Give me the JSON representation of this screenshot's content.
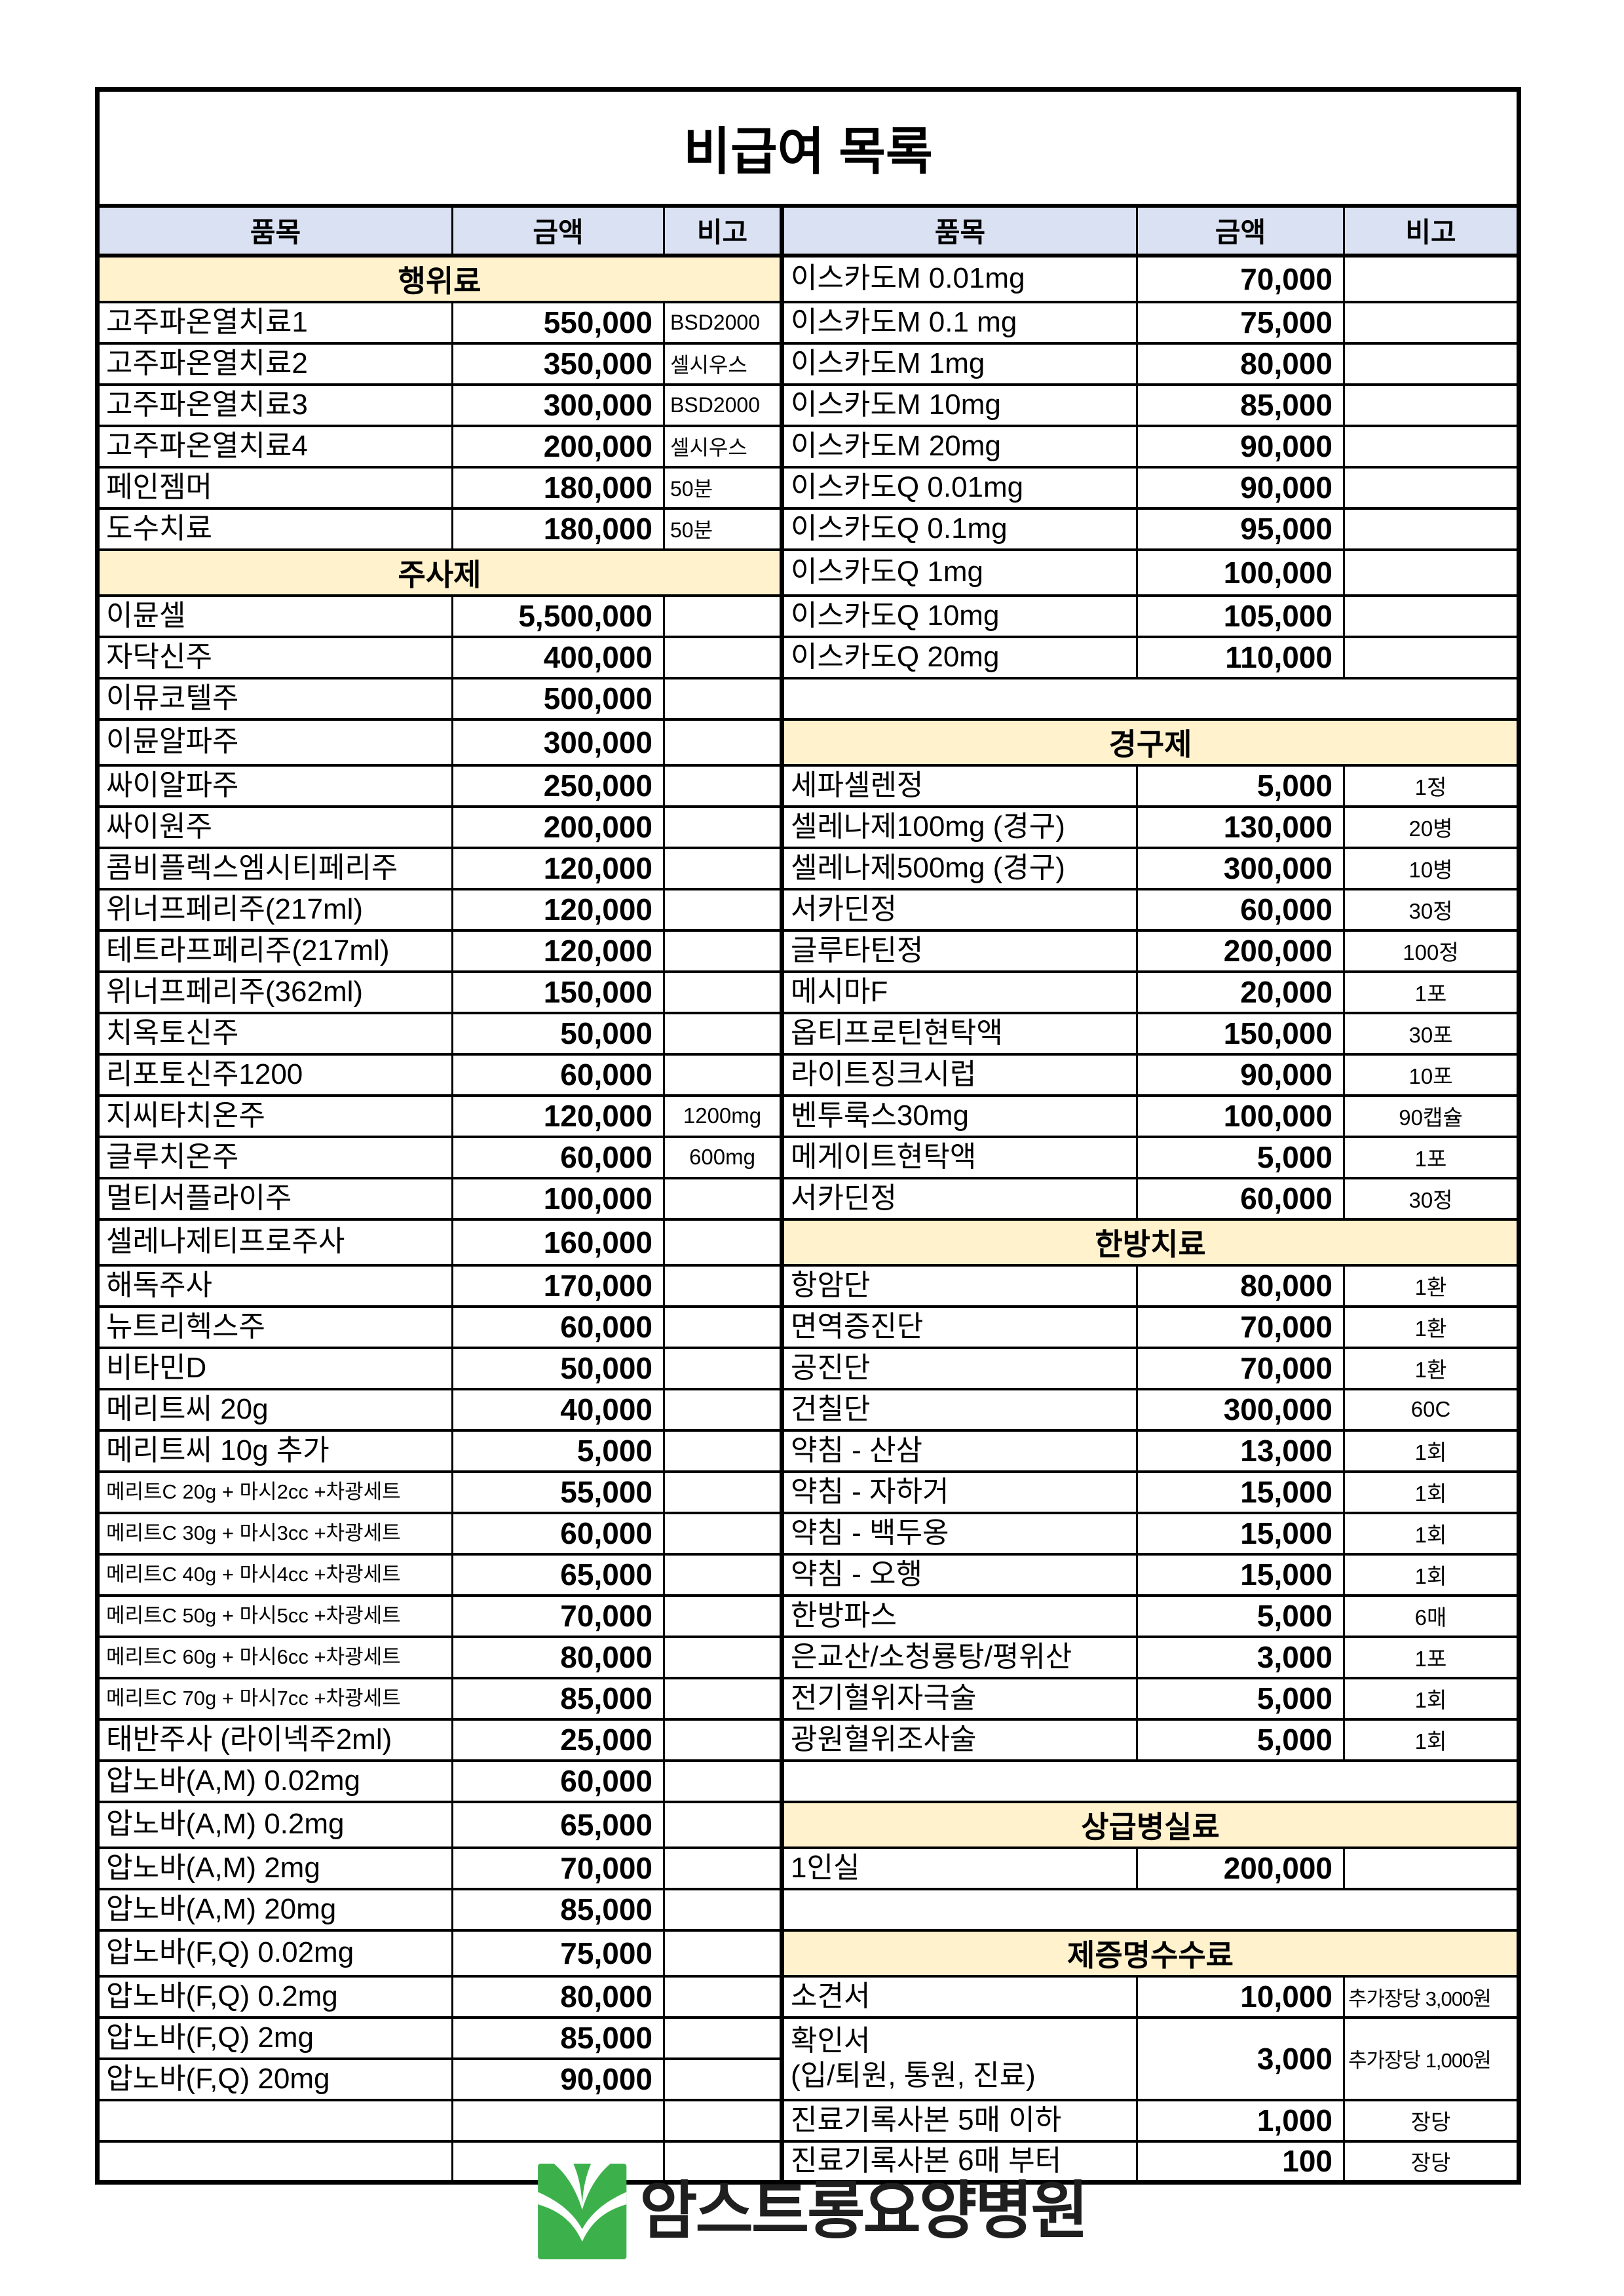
{
  "title": "비급여 목록",
  "columns": [
    "품목",
    "금액",
    "비고"
  ],
  "colors": {
    "header_bg": "#D9E1F2",
    "section_bg": "#FFF2CC",
    "border": "#000000",
    "logo_green": "#3CB14B",
    "logo_text_color": "#1F1F1F"
  },
  "logo": {
    "text": "암스트롱요양병원",
    "icon": "green-sprout-v-icon"
  },
  "rows": [
    {
      "left": {
        "type": "section",
        "label": "행위료"
      },
      "right": {
        "type": "item",
        "name": "이스카도M 0.01mg",
        "amount": "70,000",
        "note": ""
      }
    },
    {
      "left": {
        "type": "item",
        "name": "고주파온열치료1",
        "amount": "550,000",
        "note": "BSD2000"
      },
      "right": {
        "type": "item",
        "name": "이스카도M 0.1 mg",
        "amount": "75,000",
        "note": ""
      }
    },
    {
      "left": {
        "type": "item",
        "name": "고주파온열치료2",
        "amount": "350,000",
        "note": "셀시우스"
      },
      "right": {
        "type": "item",
        "name": "이스카도M 1mg",
        "amount": "80,000",
        "note": ""
      }
    },
    {
      "left": {
        "type": "item",
        "name": "고주파온열치료3",
        "amount": "300,000",
        "note": "BSD2000"
      },
      "right": {
        "type": "item",
        "name": "이스카도M 10mg",
        "amount": "85,000",
        "note": ""
      }
    },
    {
      "left": {
        "type": "item",
        "name": "고주파온열치료4",
        "amount": "200,000",
        "note": "셀시우스"
      },
      "right": {
        "type": "item",
        "name": "이스카도M 20mg",
        "amount": "90,000",
        "note": ""
      }
    },
    {
      "left": {
        "type": "item",
        "name": "페인젬머",
        "amount": "180,000",
        "note": "50분"
      },
      "right": {
        "type": "item",
        "name": "이스카도Q 0.01mg",
        "amount": "90,000",
        "note": ""
      }
    },
    {
      "left": {
        "type": "item",
        "name": "도수치료",
        "amount": "180,000",
        "note": "50분"
      },
      "right": {
        "type": "item",
        "name": "이스카도Q 0.1mg",
        "amount": "95,000",
        "note": ""
      }
    },
    {
      "left": {
        "type": "section",
        "label": "주사제"
      },
      "right": {
        "type": "item",
        "name": "이스카도Q 1mg",
        "amount": "100,000",
        "note": ""
      }
    },
    {
      "left": {
        "type": "item",
        "name": "이뮨셀",
        "amount": "5,500,000",
        "note": ""
      },
      "right": {
        "type": "item",
        "name": "이스카도Q 10mg",
        "amount": "105,000",
        "note": ""
      }
    },
    {
      "left": {
        "type": "item",
        "name": "자닥신주",
        "amount": "400,000",
        "note": ""
      },
      "right": {
        "type": "item",
        "name": "이스카도Q 20mg",
        "amount": "110,000",
        "note": ""
      }
    },
    {
      "left": {
        "type": "item",
        "name": "이뮤코텔주",
        "amount": "500,000",
        "note": ""
      },
      "right": {
        "type": "empty",
        "merged": true
      }
    },
    {
      "left": {
        "type": "item",
        "name": "이뮨알파주",
        "amount": "300,000",
        "note": ""
      },
      "right": {
        "type": "section",
        "label": "경구제"
      }
    },
    {
      "left": {
        "type": "item",
        "name": "싸이알파주",
        "amount": "250,000",
        "note": ""
      },
      "right": {
        "type": "item",
        "name": "세파셀렌정",
        "amount": "5,000",
        "note": "1정"
      }
    },
    {
      "left": {
        "type": "item",
        "name": "싸이원주",
        "amount": "200,000",
        "note": ""
      },
      "right": {
        "type": "item",
        "name": "셀레나제100mg (경구)",
        "amount": "130,000",
        "note": "20병"
      }
    },
    {
      "left": {
        "type": "item",
        "name": "콤비플렉스엠시티페리주",
        "amount": "120,000",
        "note": ""
      },
      "right": {
        "type": "item",
        "name": "셀레나제500mg (경구)",
        "amount": "300,000",
        "note": "10병"
      }
    },
    {
      "left": {
        "type": "item",
        "name": "위너프페리주(217ml)",
        "amount": "120,000",
        "note": ""
      },
      "right": {
        "type": "item",
        "name": "서카딘정",
        "amount": "60,000",
        "note": "30정"
      }
    },
    {
      "left": {
        "type": "item",
        "name": "테트라프페리주(217ml)",
        "amount": "120,000",
        "note": ""
      },
      "right": {
        "type": "item",
        "name": "글루타틴정",
        "amount": "200,000",
        "note": "100정"
      }
    },
    {
      "left": {
        "type": "item",
        "name": "위너프페리주(362ml)",
        "amount": "150,000",
        "note": ""
      },
      "right": {
        "type": "item",
        "name": "메시마F",
        "amount": "20,000",
        "note": "1포"
      }
    },
    {
      "left": {
        "type": "item",
        "name": "치옥토신주",
        "amount": "50,000",
        "note": ""
      },
      "right": {
        "type": "item",
        "name": "옵티프로틴현탁액",
        "amount": "150,000",
        "note": "30포"
      }
    },
    {
      "left": {
        "type": "item",
        "name": "리포토신주1200",
        "amount": "60,000",
        "note": ""
      },
      "right": {
        "type": "item",
        "name": "라이트징크시럽",
        "amount": "90,000",
        "note": "10포"
      }
    },
    {
      "left": {
        "type": "item",
        "name": "지씨타치온주",
        "amount": "120,000",
        "note": "1200mg",
        "note_center": true
      },
      "right": {
        "type": "item",
        "name": "벤투룩스30mg",
        "amount": "100,000",
        "note": "90캡슐"
      }
    },
    {
      "left": {
        "type": "item",
        "name": "글루치온주",
        "amount": "60,000",
        "note": "600mg",
        "note_center": true
      },
      "right": {
        "type": "item",
        "name": "메게이트현탁액",
        "amount": "5,000",
        "note": "1포"
      }
    },
    {
      "left": {
        "type": "item",
        "name": "멀티서플라이주",
        "amount": "100,000",
        "note": ""
      },
      "right": {
        "type": "item",
        "name": "서카딘정",
        "amount": "60,000",
        "note": "30정"
      }
    },
    {
      "left": {
        "type": "item",
        "name": "셀레나제티프로주사",
        "amount": "160,000",
        "note": ""
      },
      "right": {
        "type": "section",
        "label": "한방치료"
      }
    },
    {
      "left": {
        "type": "item",
        "name": "해독주사",
        "amount": "170,000",
        "note": ""
      },
      "right": {
        "type": "item",
        "name": "항암단",
        "amount": "80,000",
        "note": "1환"
      }
    },
    {
      "left": {
        "type": "item",
        "name": "뉴트리헥스주",
        "amount": "60,000",
        "note": ""
      },
      "right": {
        "type": "item",
        "name": "면역증진단",
        "amount": "70,000",
        "note": "1환"
      }
    },
    {
      "left": {
        "type": "item",
        "name": "비타민D",
        "amount": "50,000",
        "note": ""
      },
      "right": {
        "type": "item",
        "name": "공진단",
        "amount": "70,000",
        "note": "1환"
      }
    },
    {
      "left": {
        "type": "item",
        "name": "메리트씨 20g",
        "amount": "40,000",
        "note": ""
      },
      "right": {
        "type": "item",
        "name": "건칠단",
        "amount": "300,000",
        "note": "60C"
      }
    },
    {
      "left": {
        "type": "item",
        "name": "메리트씨 10g 추가",
        "amount": "5,000",
        "note": ""
      },
      "right": {
        "type": "item",
        "name": "약침 - 산삼",
        "amount": "13,000",
        "note": "1회"
      }
    },
    {
      "left": {
        "type": "item",
        "name": "메리트C 20g + 마시2cc +차광세트",
        "amount": "55,000",
        "note": "",
        "small": true
      },
      "right": {
        "type": "item",
        "name": "약침 - 자하거",
        "amount": "15,000",
        "note": "1회"
      }
    },
    {
      "left": {
        "type": "item",
        "name": "메리트C 30g + 마시3cc +차광세트",
        "amount": "60,000",
        "note": "",
        "small": true
      },
      "right": {
        "type": "item",
        "name": "약침 - 백두옹",
        "amount": "15,000",
        "note": "1회"
      }
    },
    {
      "left": {
        "type": "item",
        "name": "메리트C 40g + 마시4cc +차광세트",
        "amount": "65,000",
        "note": "",
        "small": true
      },
      "right": {
        "type": "item",
        "name": "약침 - 오행",
        "amount": "15,000",
        "note": "1회"
      }
    },
    {
      "left": {
        "type": "item",
        "name": "메리트C 50g + 마시5cc +차광세트",
        "amount": "70,000",
        "note": "",
        "small": true
      },
      "right": {
        "type": "item",
        "name": "한방파스",
        "amount": "5,000",
        "note": "6매"
      }
    },
    {
      "left": {
        "type": "item",
        "name": "메리트C 60g + 마시6cc +차광세트",
        "amount": "80,000",
        "note": "",
        "small": true
      },
      "right": {
        "type": "item",
        "name": "은교산/소청룡탕/평위산",
        "amount": "3,000",
        "note": "1포"
      }
    },
    {
      "left": {
        "type": "item",
        "name": "메리트C 70g + 마시7cc +차광세트",
        "amount": "85,000",
        "note": "",
        "small": true
      },
      "right": {
        "type": "item",
        "name": "전기혈위자극술",
        "amount": "5,000",
        "note": "1회"
      }
    },
    {
      "left": {
        "type": "item",
        "name": "태반주사 (라이넥주2ml)",
        "amount": "25,000",
        "note": ""
      },
      "right": {
        "type": "item",
        "name": "광원혈위조사술",
        "amount": "5,000",
        "note": "1회"
      }
    },
    {
      "left": {
        "type": "item",
        "name": "압노바(A,M) 0.02mg",
        "amount": "60,000",
        "note": ""
      },
      "right": {
        "type": "empty",
        "merged": true
      }
    },
    {
      "left": {
        "type": "item",
        "name": "압노바(A,M) 0.2mg",
        "amount": "65,000",
        "note": ""
      },
      "right": {
        "type": "section",
        "label": "상급병실료"
      }
    },
    {
      "left": {
        "type": "item",
        "name": "압노바(A,M) 2mg",
        "amount": "70,000",
        "note": ""
      },
      "right": {
        "type": "item",
        "name": "1인실",
        "amount": "200,000",
        "note": ""
      }
    },
    {
      "left": {
        "type": "item",
        "name": "압노바(A,M) 20mg",
        "amount": "85,000",
        "note": ""
      },
      "right": {
        "type": "empty",
        "merged": true
      }
    },
    {
      "left": {
        "type": "item",
        "name": "압노바(F,Q) 0.02mg",
        "amount": "75,000",
        "note": ""
      },
      "right": {
        "type": "section",
        "label": "제증명수수료"
      }
    },
    {
      "left": {
        "type": "item",
        "name": "압노바(F,Q) 0.2mg",
        "amount": "80,000",
        "note": ""
      },
      "right": {
        "type": "item",
        "name": "소견서",
        "amount": "10,000",
        "note": "추가장당 3,000원",
        "note_left": true
      }
    },
    {
      "left": {
        "type": "item",
        "name": "압노바(F,Q) 2mg",
        "amount": "85,000",
        "note": ""
      },
      "right": {
        "type": "item",
        "name": "확인서",
        "name2": "(입/퇴원, 통원, 진료)",
        "amount": "3,000",
        "note": "추가장당 1,000원",
        "note_left": true,
        "rowspan": 2
      }
    },
    {
      "left": {
        "type": "item",
        "name": "압노바(F,Q) 20mg",
        "amount": "90,000",
        "note": ""
      },
      "right": {
        "type": "skip"
      }
    },
    {
      "left": {
        "type": "empty"
      },
      "right": {
        "type": "item",
        "name": "진료기록사본 5매 이하",
        "amount": "1,000",
        "note": "장당"
      }
    },
    {
      "left": {
        "type": "empty"
      },
      "right": {
        "type": "item",
        "name": "진료기록사본 6매 부터",
        "amount": "100",
        "note": "장당"
      }
    }
  ]
}
